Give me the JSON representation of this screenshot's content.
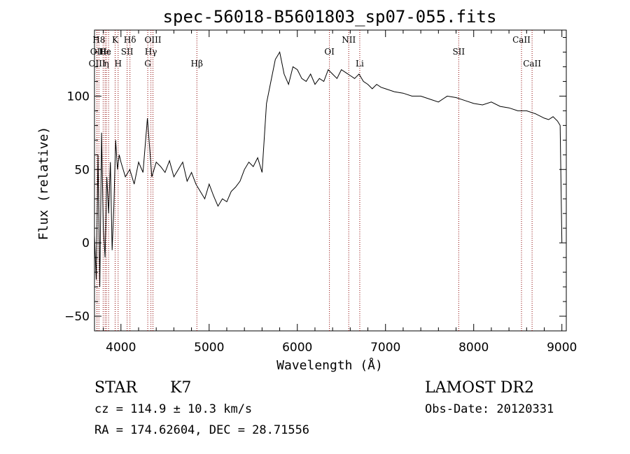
{
  "chart_data": {
    "type": "line",
    "title": "spec-56018-B5601803_sp07-055.fits",
    "xlabel": "Wavelength (Å)",
    "ylabel": "Flux (relative)",
    "xlim": [
      3700,
      9050
    ],
    "ylim": [
      -60,
      145
    ],
    "x_ticks": [
      {
        "value": 4000,
        "label": "4000"
      },
      {
        "value": 5000,
        "label": "5000"
      },
      {
        "value": 6000,
        "label": "6000"
      },
      {
        "value": 7000,
        "label": "7000"
      },
      {
        "value": 8000,
        "label": "8000"
      },
      {
        "value": 9000,
        "label": "9000"
      }
    ],
    "y_ticks": [
      {
        "value": -50,
        "label": "−50"
      },
      {
        "value": 0,
        "label": "0"
      },
      {
        "value": 50,
        "label": "50"
      },
      {
        "value": 100,
        "label": "100"
      }
    ],
    "x_minor_step": 200,
    "y_minor_step": 10,
    "grid": false,
    "series_color": "#000000",
    "line_marker_color": "#8b0000",
    "spectrum": {
      "x": [
        3700,
        3720,
        3740,
        3760,
        3780,
        3800,
        3820,
        3840,
        3860,
        3880,
        3900,
        3920,
        3940,
        3960,
        3980,
        4000,
        4050,
        4100,
        4150,
        4200,
        4250,
        4300,
        4350,
        4400,
        4450,
        4500,
        4550,
        4600,
        4650,
        4700,
        4750,
        4800,
        4850,
        4900,
        4950,
        5000,
        5050,
        5100,
        5150,
        5200,
        5250,
        5300,
        5350,
        5400,
        5450,
        5500,
        5550,
        5600,
        5650,
        5700,
        5750,
        5800,
        5850,
        5900,
        5950,
        6000,
        6050,
        6100,
        6150,
        6200,
        6250,
        6300,
        6350,
        6400,
        6450,
        6500,
        6550,
        6600,
        6650,
        6700,
        6750,
        6800,
        6850,
        6900,
        6950,
        7000,
        7100,
        7200,
        7300,
        7400,
        7500,
        7600,
        7700,
        7800,
        7900,
        8000,
        8100,
        8200,
        8300,
        8400,
        8500,
        8600,
        8700,
        8800,
        8850,
        8900,
        8950,
        8980,
        9000
      ],
      "y": [
        5,
        -25,
        60,
        -30,
        75,
        10,
        -10,
        45,
        20,
        55,
        -5,
        25,
        70,
        50,
        60,
        55,
        45,
        50,
        40,
        55,
        48,
        85,
        45,
        55,
        52,
        48,
        56,
        45,
        50,
        55,
        42,
        48,
        40,
        35,
        30,
        40,
        32,
        25,
        30,
        28,
        35,
        38,
        42,
        50,
        55,
        52,
        58,
        48,
        95,
        110,
        125,
        130,
        115,
        108,
        120,
        118,
        112,
        110,
        115,
        108,
        112,
        110,
        118,
        115,
        112,
        118,
        116,
        114,
        112,
        115,
        110,
        108,
        105,
        108,
        106,
        105,
        103,
        102,
        100,
        100,
        98,
        96,
        100,
        99,
        97,
        95,
        94,
        96,
        93,
        92,
        90,
        90,
        88,
        85,
        84,
        86,
        83,
        80,
        0
      ]
    },
    "spectral_lines": [
      {
        "label": "H8",
        "x": 3750,
        "row": 1
      },
      {
        "label": "OII",
        "x": 3727,
        "row": 2
      },
      {
        "label": "OIII",
        "x": 3729,
        "row": 3
      },
      {
        "label": "H",
        "x": 3798,
        "row": 2
      },
      {
        "label": "He",
        "x": 3820,
        "row": 2
      },
      {
        "label": "ε",
        "x": 3860,
        "row": 2
      },
      {
        "label": "η",
        "x": 3835,
        "row": 3
      },
      {
        "label": "K",
        "x": 3934,
        "row": 1
      },
      {
        "label": "H",
        "x": 3968,
        "row": 3
      },
      {
        "label": "SII",
        "x": 4070,
        "row": 2
      },
      {
        "label": "Hδ",
        "x": 4102,
        "row": 1
      },
      {
        "label": "OIII",
        "x": 4363,
        "row": 1
      },
      {
        "label": "Hγ",
        "x": 4340,
        "row": 2
      },
      {
        "label": "G",
        "x": 4304,
        "row": 3
      },
      {
        "label": "Hβ",
        "x": 4861,
        "row": 3
      },
      {
        "label": "NII",
        "x": 6583,
        "row": 1
      },
      {
        "label": "OI",
        "x": 6364,
        "row": 2
      },
      {
        "label": "Li",
        "x": 6708,
        "row": 3
      },
      {
        "label": "SII",
        "x": 7830,
        "row": 2
      },
      {
        "label": "CaII",
        "x": 8542,
        "row": 1
      },
      {
        "label": "CaII",
        "x": 8662,
        "row": 3
      }
    ]
  },
  "info": {
    "object_class": "STAR",
    "subclass": "K7",
    "survey": "LAMOST DR2",
    "cz": "cz = 114.9 ± 10.3 km/s",
    "obs_date": "Obs-Date: 20120331",
    "coords": "RA = 174.62604, DEC =  28.71556"
  }
}
